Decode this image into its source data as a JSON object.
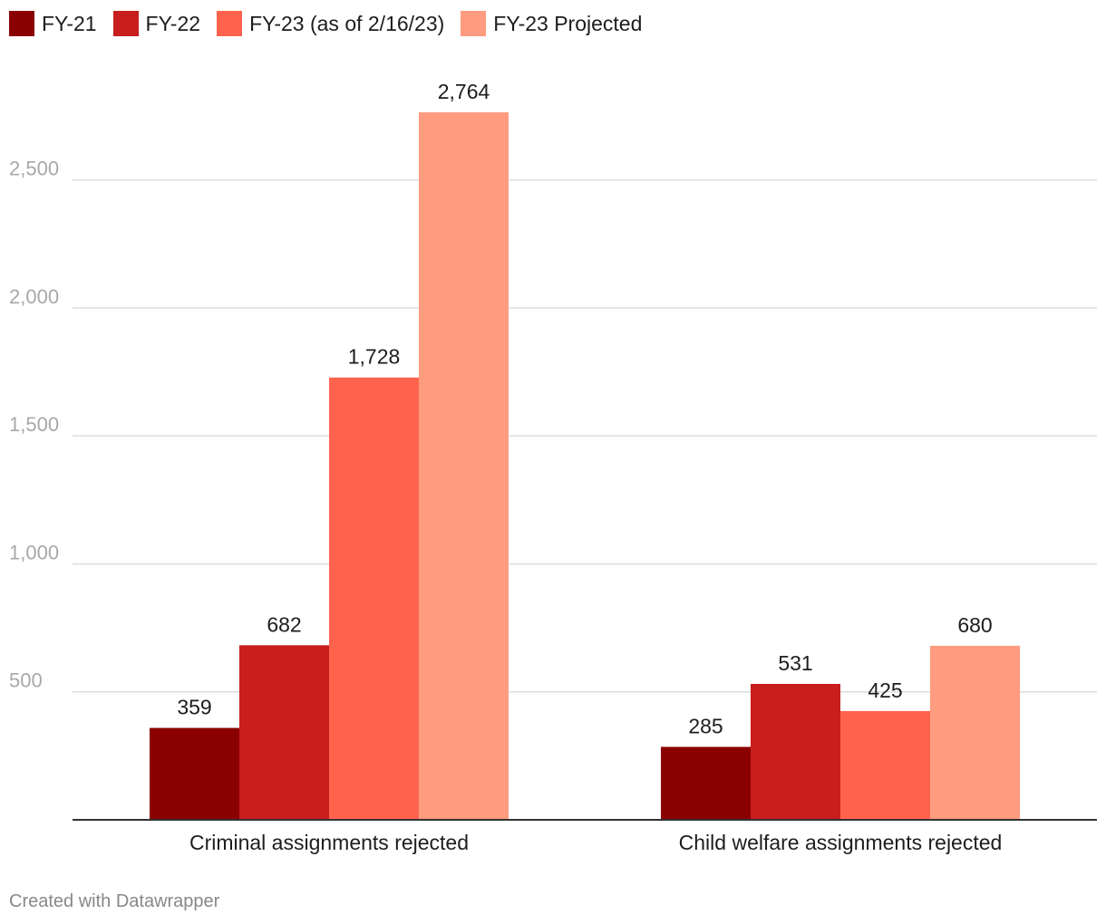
{
  "chart_data": {
    "type": "bar",
    "title": "",
    "xlabel": "",
    "ylabel": "",
    "categories": [
      "Criminal assignments rejected",
      "Child welfare assignments rejected"
    ],
    "series": [
      {
        "name": "FY-21",
        "color": "#8b0000",
        "values": [
          359,
          285
        ],
        "labels": [
          "359",
          "285"
        ]
      },
      {
        "name": "FY-22",
        "color": "#c81e1e",
        "values": [
          682,
          531
        ],
        "labels": [
          "682",
          "531"
        ]
      },
      {
        "name": "FY-23 (as of 2/16/23)",
        "color": "#ff634d",
        "values": [
          1728,
          425
        ],
        "labels": [
          "1,728",
          "425"
        ]
      },
      {
        "name": "FY-23 Projected",
        "color": "#ff9b7e",
        "values": [
          2764,
          680
        ],
        "labels": [
          "2,764",
          "680"
        ]
      }
    ],
    "ylim": [
      0,
      2764
    ],
    "yticks": [
      500,
      1000,
      1500,
      2000,
      2500
    ],
    "ytick_labels": [
      "500",
      "1,000",
      "1,500",
      "2,000",
      "2,500"
    ],
    "grid": true,
    "legend": "top-left"
  },
  "footer": {
    "credit": "Created with Datawrapper"
  }
}
